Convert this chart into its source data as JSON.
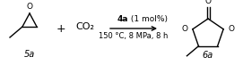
{
  "bg_color": "#ffffff",
  "label_5a": "5a",
  "label_6a": "6a",
  "plus_sign": "+",
  "co2_text": "CO₂",
  "arrow_label_top_bold": "4a",
  "arrow_label_top_normal": " (1 mol%)",
  "arrow_label_bottom": "150 °C, 8 MPa, 8 h",
  "figsize": [
    2.71,
    0.73
  ],
  "dpi": 100
}
